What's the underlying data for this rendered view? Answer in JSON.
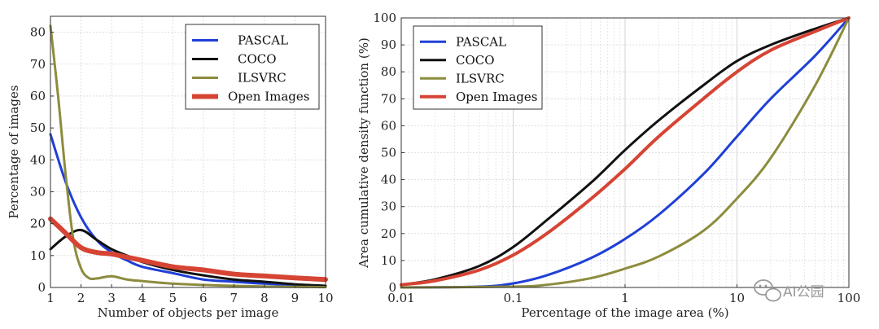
{
  "watermark": "AI公园",
  "chart_data": [
    {
      "type": "line",
      "xlabel": "Number of objects per image",
      "ylabel": "Percentage of images",
      "xlim": [
        1,
        10
      ],
      "ylim": [
        0,
        85
      ],
      "xticks": [
        1,
        2,
        3,
        4,
        5,
        6,
        7,
        8,
        9,
        10
      ],
      "yticks": [
        0,
        10,
        20,
        30,
        40,
        50,
        60,
        70,
        80
      ],
      "grid": true,
      "legend_position": "top-right",
      "series": [
        {
          "name": "PASCAL",
          "color": "#1f3fd6",
          "x": [
            1,
            1.5,
            2,
            2.5,
            3,
            3.5,
            4,
            5,
            6,
            7,
            8,
            9,
            10
          ],
          "y": [
            48,
            33,
            22,
            15,
            11,
            8.5,
            6.5,
            4.5,
            2.5,
            1.8,
            1.2,
            0.8,
            0.5
          ]
        },
        {
          "name": "COCO",
          "color": "#111111",
          "x": [
            1,
            1.5,
            2,
            2.5,
            3,
            3.5,
            4,
            5,
            6,
            7,
            8,
            9,
            10
          ],
          "y": [
            12,
            16,
            18,
            15,
            12,
            10,
            8,
            5.5,
            3.8,
            2.5,
            1.8,
            1,
            0.5
          ]
        },
        {
          "name": "ILSVRC",
          "color": "#8c8c3e",
          "x": [
            1,
            1.25,
            1.5,
            1.75,
            2,
            2.25,
            2.5,
            3,
            3.5,
            4,
            5,
            6,
            7,
            8,
            9,
            10
          ],
          "y": [
            82,
            60,
            35,
            15,
            6,
            3,
            2.8,
            3.5,
            2.5,
            2,
            1.2,
            0.8,
            0.5,
            0.3,
            0.2,
            0.1
          ]
        },
        {
          "name": "Open Images",
          "color": "#d64434",
          "x": [
            1,
            1.5,
            2,
            2.5,
            3,
            3.5,
            4,
            5,
            6,
            7,
            8,
            9,
            10
          ],
          "y": [
            21.5,
            17,
            12.5,
            11,
            10.5,
            9.5,
            8.5,
            6.5,
            5.5,
            4.2,
            3.6,
            3,
            2.5
          ]
        }
      ]
    },
    {
      "type": "line",
      "xlabel": "Percentage of the image area (%)",
      "ylabel": "Area cumulative density function (%)",
      "xscale": "log",
      "xlim": [
        0.01,
        100
      ],
      "ylim": [
        0,
        100
      ],
      "xticks": [
        0.01,
        0.1,
        1,
        10,
        100
      ],
      "xticklabels": [
        "0.01",
        "0.1",
        "1",
        "10",
        "100"
      ],
      "yticks": [
        0,
        10,
        20,
        30,
        40,
        50,
        60,
        70,
        80,
        90,
        100
      ],
      "grid": true,
      "legend_position": "top-left",
      "series": [
        {
          "name": "PASCAL",
          "color": "#1f3fd6",
          "x": [
            0.01,
            0.05,
            0.1,
            0.2,
            0.5,
            1,
            2,
            5,
            10,
            20,
            50,
            100
          ],
          "y": [
            0,
            0.3,
            1.5,
            4.5,
            11,
            18,
            27,
            42,
            56,
            70,
            86,
            100
          ]
        },
        {
          "name": "COCO",
          "color": "#111111",
          "x": [
            0.01,
            0.02,
            0.05,
            0.1,
            0.2,
            0.5,
            1,
            2,
            5,
            10,
            20,
            50,
            100
          ],
          "y": [
            1,
            3,
            8,
            15,
            25,
            39,
            51,
            62,
            75,
            84,
            90,
            96,
            100
          ]
        },
        {
          "name": "ILSVRC",
          "color": "#8c8c3e",
          "x": [
            0.01,
            0.1,
            0.2,
            0.5,
            1,
            2,
            5,
            10,
            20,
            50,
            100
          ],
          "y": [
            0,
            0.3,
            1,
            3.5,
            7,
            11.5,
            21,
            33,
            48,
            75,
            100
          ]
        },
        {
          "name": "Open Images",
          "color": "#d64434",
          "x": [
            0.01,
            0.02,
            0.05,
            0.1,
            0.2,
            0.5,
            1,
            2,
            5,
            10,
            20,
            50,
            100
          ],
          "y": [
            1,
            2.5,
            6.5,
            12,
            20,
            33,
            44,
            56,
            70,
            80,
            88,
            95,
            100
          ]
        }
      ]
    }
  ]
}
